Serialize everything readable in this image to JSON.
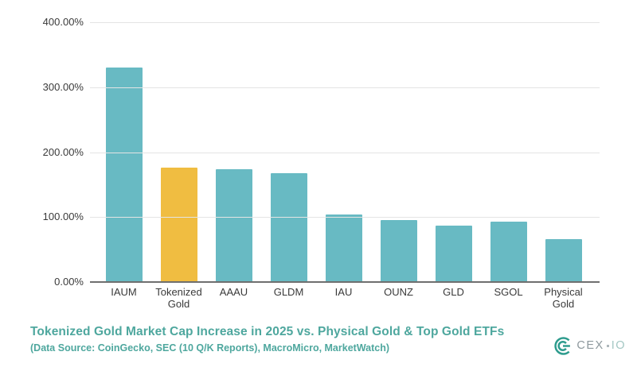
{
  "chart_data": {
    "type": "bar",
    "title": "Tokenized Gold Market Cap Increase in 2025 vs. Physical Gold & Top Gold ETFs",
    "subtitle": "(Data Source: CoinGecko, SEC (10 Q/K Reports), MacroMicro, MarketWatch)",
    "categories": [
      "IAUM",
      "Tokenized Gold",
      "AAAU",
      "GLDM",
      "IAU",
      "OUNZ",
      "GLD",
      "SGOL",
      "Physical Gold"
    ],
    "values": [
      330,
      176,
      174,
      167,
      104,
      95,
      87,
      93,
      66
    ],
    "unit": "%",
    "highlight_index": 1,
    "bar_color": "#68bac3",
    "highlight_color": "#f0bd41",
    "y_ticks": [
      {
        "label": "400.00%",
        "value": 400
      },
      {
        "label": "300.00%",
        "value": 300
      },
      {
        "label": "200.00%",
        "value": 200
      },
      {
        "label": "100.00%",
        "value": 100
      },
      {
        "label": "0.00%",
        "value": 0
      }
    ],
    "ylim": [
      0,
      400
    ],
    "grid": true,
    "legend": "none",
    "gridline_color": "#e4e4e4",
    "axis_line_color": "#6f6f6f",
    "tick_label_color": "#3a3a3a"
  },
  "footer": {
    "title": "Tokenized Gold Market Cap Increase in 2025 vs. Physical Gold & Top Gold ETFs",
    "subtitle": "(Data Source: CoinGecko, SEC (10 Q/K Reports), MacroMicro, MarketWatch)",
    "title_color": "#4ea79e"
  },
  "branding": {
    "logo_icon": "cexio-mark-icon",
    "logo_text_primary": "CEX",
    "logo_text_secondary": "IO",
    "icon_color": "#2f9c8e",
    "primary_text_color": "#8d989d",
    "secondary_text_color": "#a3c7c3"
  },
  "colors": {
    "background": "#ffffff"
  }
}
